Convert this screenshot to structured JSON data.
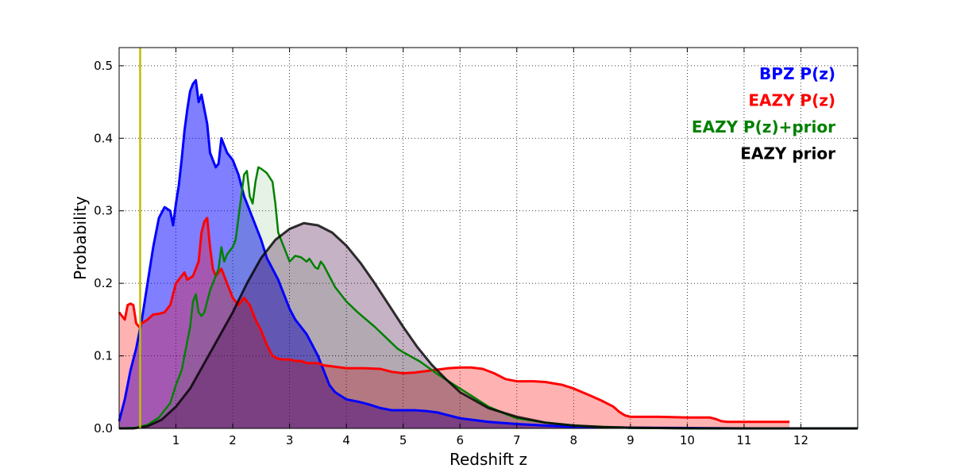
{
  "chart_data": {
    "type": "area",
    "xlabel": "Redshift z",
    "ylabel": "Probability",
    "xlim": [
      0,
      13
    ],
    "ylim": [
      0,
      0.525
    ],
    "x_ticks": [
      1,
      2,
      3,
      4,
      5,
      6,
      7,
      8,
      9,
      10,
      11,
      12
    ],
    "x_tick_labels": [
      "1",
      "2",
      "3",
      "4",
      "5",
      "6",
      "7",
      "8",
      "9",
      "10",
      "11",
      "12"
    ],
    "y_ticks": [
      0.0,
      0.1,
      0.2,
      0.3,
      0.4,
      0.5
    ],
    "y_tick_labels": [
      "0.0",
      "0.1",
      "0.2",
      "0.3",
      "0.4",
      "0.5"
    ],
    "grid": true,
    "legend_position": "top-right",
    "reference_line": {
      "x": 0.37,
      "color": "#bfbf00"
    },
    "series": [
      {
        "name": "BPZ P(z)",
        "color": "#0000ff",
        "fill_color": "#0000ff",
        "fill_opacity": 0.5,
        "line_width": 3,
        "points": [
          [
            0,
            0.01
          ],
          [
            0.1,
            0.04
          ],
          [
            0.2,
            0.08
          ],
          [
            0.3,
            0.11
          ],
          [
            0.4,
            0.15
          ],
          [
            0.5,
            0.2
          ],
          [
            0.6,
            0.25
          ],
          [
            0.7,
            0.29
          ],
          [
            0.8,
            0.305
          ],
          [
            0.9,
            0.3
          ],
          [
            0.95,
            0.28
          ],
          [
            1.0,
            0.31
          ],
          [
            1.05,
            0.335
          ],
          [
            1.1,
            0.37
          ],
          [
            1.15,
            0.41
          ],
          [
            1.2,
            0.44
          ],
          [
            1.25,
            0.465
          ],
          [
            1.3,
            0.475
          ],
          [
            1.35,
            0.48
          ],
          [
            1.4,
            0.45
          ],
          [
            1.45,
            0.46
          ],
          [
            1.5,
            0.44
          ],
          [
            1.55,
            0.42
          ],
          [
            1.6,
            0.38
          ],
          [
            1.65,
            0.37
          ],
          [
            1.7,
            0.36
          ],
          [
            1.75,
            0.365
          ],
          [
            1.8,
            0.4
          ],
          [
            1.85,
            0.39
          ],
          [
            1.9,
            0.38
          ],
          [
            2.0,
            0.37
          ],
          [
            2.1,
            0.35
          ],
          [
            2.2,
            0.32
          ],
          [
            2.3,
            0.3
          ],
          [
            2.4,
            0.28
          ],
          [
            2.5,
            0.26
          ],
          [
            2.6,
            0.235
          ],
          [
            2.7,
            0.22
          ],
          [
            2.8,
            0.205
          ],
          [
            2.9,
            0.185
          ],
          [
            3.0,
            0.165
          ],
          [
            3.1,
            0.15
          ],
          [
            3.2,
            0.14
          ],
          [
            3.3,
            0.13
          ],
          [
            3.4,
            0.115
          ],
          [
            3.5,
            0.1
          ],
          [
            3.6,
            0.08
          ],
          [
            3.7,
            0.06
          ],
          [
            3.8,
            0.05
          ],
          [
            3.9,
            0.045
          ],
          [
            4.0,
            0.04
          ],
          [
            4.2,
            0.037
          ],
          [
            4.4,
            0.033
          ],
          [
            4.6,
            0.028
          ],
          [
            4.8,
            0.025
          ],
          [
            5.0,
            0.025
          ],
          [
            5.2,
            0.025
          ],
          [
            5.4,
            0.024
          ],
          [
            5.6,
            0.022
          ],
          [
            5.8,
            0.018
          ],
          [
            6.0,
            0.014
          ],
          [
            6.5,
            0.009
          ],
          [
            7.0,
            0.006
          ],
          [
            7.5,
            0.004
          ],
          [
            8.0,
            0.002
          ],
          [
            9.0,
            0.001
          ],
          [
            10.0,
            0.0005
          ],
          [
            11.0,
            0.0
          ],
          [
            12.0,
            0.0
          ],
          [
            13.0,
            0.0
          ]
        ]
      },
      {
        "name": "EAZY P(z)",
        "color": "#ff0000",
        "fill_color": "#ff0000",
        "fill_opacity": 0.3,
        "line_width": 3,
        "points": [
          [
            0,
            0.16
          ],
          [
            0.05,
            0.155
          ],
          [
            0.1,
            0.15
          ],
          [
            0.15,
            0.17
          ],
          [
            0.2,
            0.172
          ],
          [
            0.25,
            0.17
          ],
          [
            0.3,
            0.145
          ],
          [
            0.35,
            0.14
          ],
          [
            0.4,
            0.145
          ],
          [
            0.5,
            0.15
          ],
          [
            0.6,
            0.157
          ],
          [
            0.7,
            0.158
          ],
          [
            0.8,
            0.16
          ],
          [
            0.9,
            0.17
          ],
          [
            1.0,
            0.2
          ],
          [
            1.1,
            0.21
          ],
          [
            1.15,
            0.215
          ],
          [
            1.2,
            0.205
          ],
          [
            1.3,
            0.21
          ],
          [
            1.4,
            0.23
          ],
          [
            1.45,
            0.27
          ],
          [
            1.5,
            0.285
          ],
          [
            1.55,
            0.29
          ],
          [
            1.6,
            0.25
          ],
          [
            1.65,
            0.22
          ],
          [
            1.7,
            0.21
          ],
          [
            1.8,
            0.22
          ],
          [
            1.9,
            0.2
          ],
          [
            2.0,
            0.18
          ],
          [
            2.1,
            0.17
          ],
          [
            2.2,
            0.18
          ],
          [
            2.3,
            0.17
          ],
          [
            2.4,
            0.15
          ],
          [
            2.5,
            0.135
          ],
          [
            2.6,
            0.115
          ],
          [
            2.7,
            0.1
          ],
          [
            2.8,
            0.096
          ],
          [
            2.9,
            0.095
          ],
          [
            3.0,
            0.095
          ],
          [
            3.1,
            0.093
          ],
          [
            3.2,
            0.093
          ],
          [
            3.3,
            0.09
          ],
          [
            3.4,
            0.09
          ],
          [
            3.5,
            0.09
          ],
          [
            3.6,
            0.087
          ],
          [
            3.8,
            0.085
          ],
          [
            4.0,
            0.083
          ],
          [
            4.3,
            0.083
          ],
          [
            4.6,
            0.082
          ],
          [
            4.8,
            0.078
          ],
          [
            5.0,
            0.076
          ],
          [
            5.2,
            0.077
          ],
          [
            5.5,
            0.08
          ],
          [
            5.8,
            0.083
          ],
          [
            6.0,
            0.084
          ],
          [
            6.2,
            0.084
          ],
          [
            6.4,
            0.082
          ],
          [
            6.6,
            0.076
          ],
          [
            6.8,
            0.068
          ],
          [
            7.0,
            0.065
          ],
          [
            7.3,
            0.065
          ],
          [
            7.5,
            0.064
          ],
          [
            7.8,
            0.06
          ],
          [
            8.0,
            0.055
          ],
          [
            8.3,
            0.045
          ],
          [
            8.5,
            0.038
          ],
          [
            8.7,
            0.03
          ],
          [
            8.8,
            0.023
          ],
          [
            8.9,
            0.018
          ],
          [
            9.0,
            0.016
          ],
          [
            9.5,
            0.016
          ],
          [
            10.0,
            0.015
          ],
          [
            10.4,
            0.015
          ],
          [
            10.5,
            0.013
          ],
          [
            10.6,
            0.01
          ],
          [
            10.7,
            0.009
          ],
          [
            11.0,
            0.009
          ],
          [
            11.5,
            0.009
          ],
          [
            11.8,
            0.009
          ]
        ]
      },
      {
        "name": "EAZY P(z)+prior",
        "color": "#008000",
        "fill_color": "#008000",
        "fill_opacity": 0.1,
        "line_width": 2.5,
        "points": [
          [
            0,
            0
          ],
          [
            0.3,
            0.001
          ],
          [
            0.5,
            0.005
          ],
          [
            0.7,
            0.015
          ],
          [
            0.9,
            0.035
          ],
          [
            1.0,
            0.06
          ],
          [
            1.1,
            0.08
          ],
          [
            1.15,
            0.1
          ],
          [
            1.2,
            0.12
          ],
          [
            1.25,
            0.14
          ],
          [
            1.3,
            0.175
          ],
          [
            1.35,
            0.185
          ],
          [
            1.4,
            0.16
          ],
          [
            1.45,
            0.155
          ],
          [
            1.5,
            0.16
          ],
          [
            1.55,
            0.175
          ],
          [
            1.6,
            0.19
          ],
          [
            1.65,
            0.2
          ],
          [
            1.7,
            0.21
          ],
          [
            1.75,
            0.22
          ],
          [
            1.8,
            0.25
          ],
          [
            1.85,
            0.23
          ],
          [
            1.9,
            0.24
          ],
          [
            2.0,
            0.25
          ],
          [
            2.05,
            0.26
          ],
          [
            2.1,
            0.29
          ],
          [
            2.15,
            0.32
          ],
          [
            2.2,
            0.35
          ],
          [
            2.25,
            0.355
          ],
          [
            2.3,
            0.32
          ],
          [
            2.35,
            0.31
          ],
          [
            2.4,
            0.34
          ],
          [
            2.45,
            0.36
          ],
          [
            2.5,
            0.358
          ],
          [
            2.6,
            0.352
          ],
          [
            2.7,
            0.34
          ],
          [
            2.75,
            0.31
          ],
          [
            2.8,
            0.27
          ],
          [
            2.9,
            0.25
          ],
          [
            3.0,
            0.23
          ],
          [
            3.1,
            0.238
          ],
          [
            3.2,
            0.236
          ],
          [
            3.3,
            0.23
          ],
          [
            3.35,
            0.234
          ],
          [
            3.4,
            0.228
          ],
          [
            3.45,
            0.222
          ],
          [
            3.5,
            0.22
          ],
          [
            3.55,
            0.23
          ],
          [
            3.6,
            0.225
          ],
          [
            3.7,
            0.21
          ],
          [
            3.8,
            0.195
          ],
          [
            3.9,
            0.185
          ],
          [
            4.0,
            0.175
          ],
          [
            4.2,
            0.16
          ],
          [
            4.5,
            0.14
          ],
          [
            4.7,
            0.125
          ],
          [
            4.9,
            0.11
          ],
          [
            5.0,
            0.105
          ],
          [
            5.3,
            0.092
          ],
          [
            5.6,
            0.075
          ],
          [
            5.9,
            0.06
          ],
          [
            6.2,
            0.045
          ],
          [
            6.5,
            0.03
          ],
          [
            6.8,
            0.02
          ],
          [
            7.0,
            0.014
          ],
          [
            7.5,
            0.008
          ],
          [
            8.0,
            0.004
          ],
          [
            8.5,
            0.002
          ],
          [
            9.0,
            0.0005
          ],
          [
            10.0,
            0
          ],
          [
            11.0,
            0
          ],
          [
            12.0,
            0
          ],
          [
            13.0,
            0
          ]
        ]
      },
      {
        "name": "EAZY prior",
        "color": "#000000",
        "fill_color": "#400040",
        "fill_opacity": 0.3,
        "line_width": 3,
        "points": [
          [
            0,
            0
          ],
          [
            0.25,
            0
          ],
          [
            0.5,
            0.003
          ],
          [
            0.75,
            0.012
          ],
          [
            1.0,
            0.03
          ],
          [
            1.25,
            0.055
          ],
          [
            1.5,
            0.09
          ],
          [
            1.75,
            0.125
          ],
          [
            2.0,
            0.16
          ],
          [
            2.25,
            0.2
          ],
          [
            2.5,
            0.235
          ],
          [
            2.75,
            0.26
          ],
          [
            3.0,
            0.275
          ],
          [
            3.25,
            0.283
          ],
          [
            3.5,
            0.28
          ],
          [
            3.75,
            0.27
          ],
          [
            4.0,
            0.252
          ],
          [
            4.25,
            0.228
          ],
          [
            4.5,
            0.2
          ],
          [
            4.75,
            0.17
          ],
          [
            5.0,
            0.14
          ],
          [
            5.25,
            0.112
          ],
          [
            5.5,
            0.088
          ],
          [
            5.75,
            0.068
          ],
          [
            6.0,
            0.05
          ],
          [
            6.5,
            0.028
          ],
          [
            7.0,
            0.016
          ],
          [
            7.5,
            0.008
          ],
          [
            8.0,
            0.004
          ],
          [
            8.5,
            0.002
          ],
          [
            9.0,
            0.001
          ],
          [
            9.5,
            0.0005
          ],
          [
            10.0,
            0.0002
          ],
          [
            11.0,
            0
          ],
          [
            12.0,
            0
          ],
          [
            13.0,
            0
          ]
        ]
      }
    ]
  }
}
